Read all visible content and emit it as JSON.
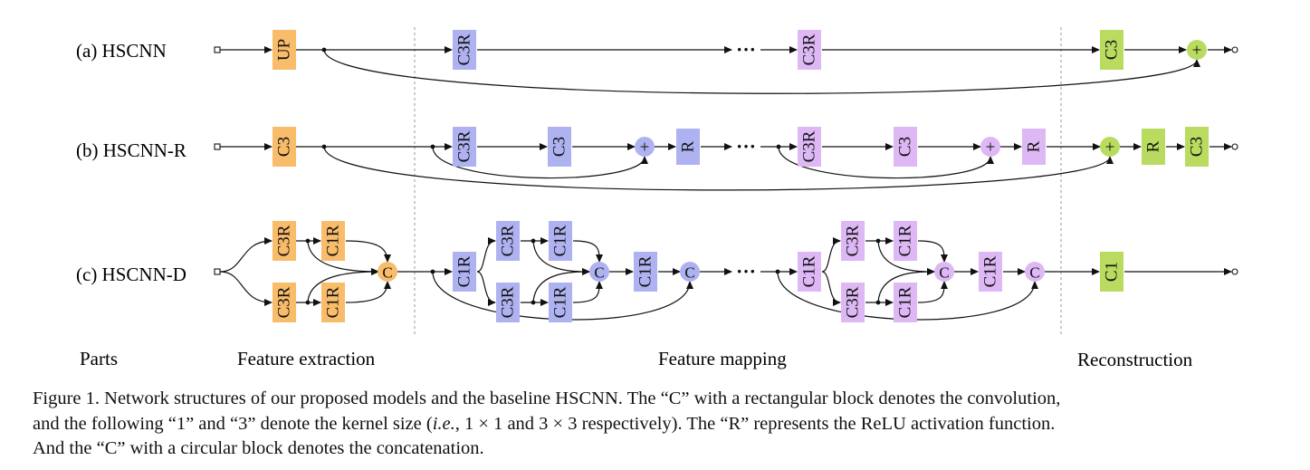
{
  "rows": [
    {
      "label": "(a) HSCNN"
    },
    {
      "label": "(b) HSCNN-R"
    },
    {
      "label": "(c) HSCNN-D"
    }
  ],
  "parts": {
    "label": "Parts",
    "feature_extraction": "Feature extraction",
    "feature_mapping": "Feature mapping",
    "reconstruction": "Reconstruction"
  },
  "blocks": {
    "up": "UP",
    "c3": "C3",
    "c3r": "C3R",
    "c1r": "C1R",
    "c1": "C1",
    "r": "R",
    "plus": "+",
    "concat": "C",
    "ellipsis": "···"
  },
  "colors": {
    "orange": "#F8BC6A",
    "blue": "#AFB2F0",
    "purple": "#DDB8F4",
    "green": "#B9DB60"
  },
  "caption": {
    "line1": "Figure 1. Network structures of our proposed models and the baseline HSCNN. The “C” with a rectangular block denotes the convolution,",
    "line2_a": "and the following “1” and “3” denote the kernel size (",
    "line2_ie": "i.e.",
    "line2_b": ", 1 × 1 and 3 × 3 respectively). The “R” represents the ReLU activation function.",
    "line3": "And the “C” with a circular block denotes the concatenation."
  }
}
